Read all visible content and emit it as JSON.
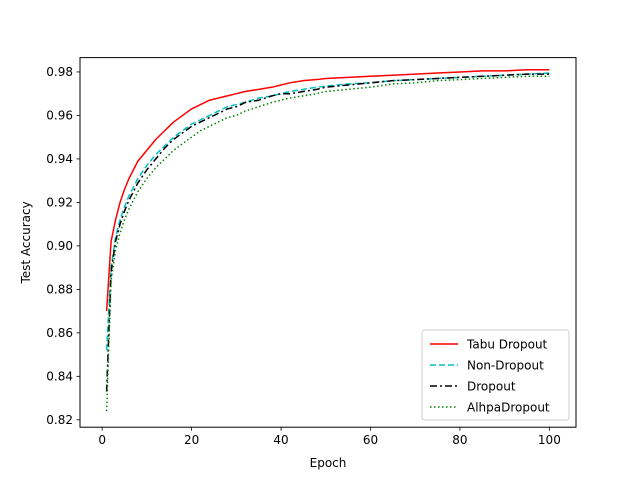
{
  "chart_data": {
    "type": "line",
    "title": "",
    "xlabel": "Epoch",
    "ylabel": "Test Accuracy",
    "xlim": [
      -4.95,
      105.95
    ],
    "ylim": [
      0.8166,
      0.9866
    ],
    "xticks": [
      0,
      20,
      40,
      60,
      80,
      100
    ],
    "yticks": [
      0.82,
      0.84,
      0.86,
      0.88,
      0.9,
      0.92,
      0.94,
      0.96,
      0.98
    ],
    "ytick_labels": [
      "0.82",
      "0.84",
      "0.86",
      "0.88",
      "0.90",
      "0.92",
      "0.94",
      "0.96",
      "0.98"
    ],
    "xtick_labels": [
      "0",
      "20",
      "40",
      "60",
      "80",
      "100"
    ],
    "grid": false,
    "legend_position": "bottom-right",
    "series": [
      {
        "name": "Tabu Dropout",
        "color": "#ff0000",
        "dash": "solid",
        "x": [
          1,
          2,
          3,
          4,
          5,
          6,
          7,
          8,
          10,
          12,
          14,
          16,
          18,
          20,
          22,
          24,
          26,
          28,
          30,
          32,
          35,
          38,
          40,
          42,
          45,
          48,
          50,
          55,
          60,
          65,
          70,
          75,
          80,
          85,
          90,
          95,
          100
        ],
        "y": [
          0.87,
          0.902,
          0.912,
          0.92,
          0.926,
          0.931,
          0.935,
          0.939,
          0.944,
          0.949,
          0.953,
          0.957,
          0.96,
          0.963,
          0.965,
          0.967,
          0.968,
          0.969,
          0.97,
          0.971,
          0.972,
          0.973,
          0.974,
          0.975,
          0.976,
          0.9765,
          0.977,
          0.9775,
          0.978,
          0.9785,
          0.979,
          0.9795,
          0.98,
          0.9805,
          0.9805,
          0.981,
          0.981
        ]
      },
      {
        "name": "Non-Dropout",
        "color": "#00bfbf",
        "dash": "dashed",
        "x": [
          1,
          2,
          3,
          4,
          5,
          6,
          7,
          8,
          10,
          12,
          14,
          16,
          18,
          20,
          22,
          24,
          26,
          28,
          30,
          32,
          35,
          38,
          40,
          42,
          45,
          48,
          50,
          55,
          60,
          65,
          70,
          75,
          80,
          85,
          90,
          95,
          100
        ],
        "y": [
          0.852,
          0.89,
          0.904,
          0.912,
          0.918,
          0.923,
          0.927,
          0.931,
          0.937,
          0.942,
          0.946,
          0.95,
          0.953,
          0.956,
          0.958,
          0.96,
          0.962,
          0.964,
          0.965,
          0.966,
          0.968,
          0.969,
          0.97,
          0.971,
          0.972,
          0.973,
          0.9735,
          0.9745,
          0.975,
          0.976,
          0.9765,
          0.977,
          0.9775,
          0.978,
          0.9785,
          0.979,
          0.9795
        ]
      },
      {
        "name": "Dropout",
        "color": "#000000",
        "dash": "dashdot",
        "x": [
          1,
          2,
          3,
          4,
          5,
          6,
          7,
          8,
          10,
          12,
          14,
          16,
          18,
          20,
          22,
          24,
          26,
          28,
          30,
          32,
          35,
          38,
          40,
          42,
          45,
          48,
          50,
          55,
          60,
          65,
          70,
          75,
          80,
          85,
          90,
          95,
          100
        ],
        "y": [
          0.833,
          0.888,
          0.902,
          0.91,
          0.916,
          0.921,
          0.925,
          0.929,
          0.935,
          0.94,
          0.945,
          0.949,
          0.952,
          0.955,
          0.957,
          0.959,
          0.961,
          0.963,
          0.964,
          0.966,
          0.967,
          0.969,
          0.97,
          0.97,
          0.971,
          0.972,
          0.973,
          0.974,
          0.975,
          0.976,
          0.9765,
          0.977,
          0.9775,
          0.978,
          0.9785,
          0.979,
          0.979
        ]
      },
      {
        "name": "AlhpaDropout",
        "color": "#008000",
        "dash": "dotted",
        "x": [
          1,
          2,
          3,
          4,
          5,
          6,
          7,
          8,
          10,
          12,
          14,
          16,
          18,
          20,
          22,
          24,
          26,
          28,
          30,
          32,
          35,
          38,
          40,
          42,
          45,
          48,
          50,
          55,
          60,
          65,
          70,
          75,
          80,
          85,
          90,
          95,
          100
        ],
        "y": [
          0.824,
          0.884,
          0.898,
          0.906,
          0.912,
          0.917,
          0.921,
          0.925,
          0.931,
          0.936,
          0.94,
          0.944,
          0.947,
          0.95,
          0.953,
          0.955,
          0.957,
          0.959,
          0.96,
          0.962,
          0.964,
          0.966,
          0.967,
          0.968,
          0.969,
          0.97,
          0.971,
          0.972,
          0.973,
          0.9745,
          0.975,
          0.976,
          0.9765,
          0.977,
          0.9775,
          0.978,
          0.978
        ]
      }
    ]
  }
}
